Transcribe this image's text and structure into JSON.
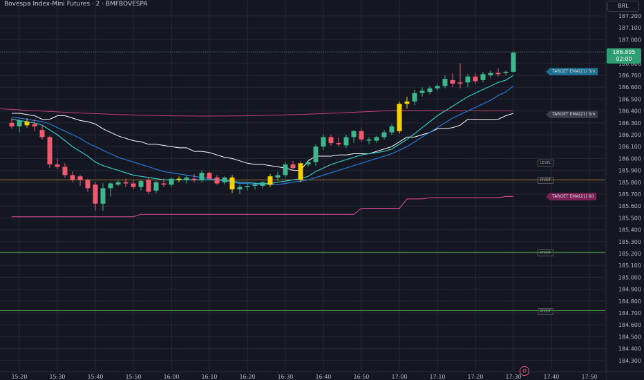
{
  "header": {
    "title": "Bovespa Index-Mini Futures · 2 · BMFBOVESPA",
    "currency": "BRL"
  },
  "last_price": {
    "value": "186.895",
    "countdown": "02:00"
  },
  "colors": {
    "background": "#141722",
    "grid": "#232735",
    "up_candle": "#3fb68b",
    "down_candle": "#f05a6e",
    "highlight_candle": "#f7d000",
    "ema_fast": "#39c6c0",
    "ema_slow": "#2b78d4",
    "channel_upper": "#ffffff",
    "channel_lower": "#e64da0",
    "ema_long": "#c2406f",
    "level_green": "#3e8f3e",
    "level_orange": "#a67a2c"
  },
  "target_labels": [
    {
      "text": "TARGET EMA(21) 5m",
      "price": 186.73,
      "color": "#1b6f8f"
    },
    {
      "text": "TARGET EMA(21) 5m",
      "price": 186.37,
      "color": "#3a3d48"
    },
    {
      "text": "TARGET EMA(21) 60",
      "price": 185.68,
      "color": "#7a2258"
    }
  ],
  "level_tags": [
    {
      "text": "LEVEL",
      "price": 185.97
    },
    {
      "text": "PIVOT",
      "price": 185.82
    },
    {
      "text": "PIVOT",
      "price": 185.21
    },
    {
      "text": "PIVOT",
      "price": 184.72
    }
  ],
  "logo_glyph": "Ø",
  "chart_data": {
    "type": "candlestick",
    "title": "Bovespa Index-Mini Futures · 2 · BMFBOVESPA",
    "y_axis": {
      "ylim": [
        184.25,
        187.3
      ],
      "ticks": [
        "187.200",
        "187.100",
        "187.000",
        "186.900",
        "186.800",
        "186.700",
        "186.600",
        "186.500",
        "186.400",
        "186.300",
        "186.200",
        "186.100",
        "186.000",
        "185.900",
        "185.800",
        "185.700",
        "185.600",
        "185.500",
        "185.400",
        "185.300",
        "185.200",
        "185.100",
        "185.000",
        "184.900",
        "184.800",
        "184.700",
        "184.600",
        "184.500",
        "184.400",
        "184.300"
      ]
    },
    "x_axis": {
      "interval": "2 min",
      "ticks": [
        "15:20",
        "15:30",
        "15:40",
        "15:50",
        "16:00",
        "16:10",
        "16:20",
        "16:30",
        "16:40",
        "16:50",
        "17:00",
        "17:10",
        "17:20",
        "17:30",
        "17:40",
        "17:50"
      ]
    },
    "grid": true,
    "candles": [
      {
        "time": "15:18",
        "o": 186.3,
        "h": 186.34,
        "l": 186.25,
        "c": 186.27,
        "color": "down"
      },
      {
        "time": "15:20",
        "o": 186.27,
        "h": 186.33,
        "l": 186.22,
        "c": 186.32,
        "color": "up"
      },
      {
        "time": "15:22",
        "o": 186.31,
        "h": 186.34,
        "l": 186.26,
        "c": 186.28,
        "color": "highlight"
      },
      {
        "time": "15:24",
        "o": 186.29,
        "h": 186.33,
        "l": 186.23,
        "c": 186.27,
        "color": "down"
      },
      {
        "time": "15:26",
        "o": 186.24,
        "h": 186.28,
        "l": 186.16,
        "c": 186.18,
        "color": "down"
      },
      {
        "time": "15:28",
        "o": 186.18,
        "h": 186.19,
        "l": 185.92,
        "c": 185.95,
        "color": "down"
      },
      {
        "time": "15:30",
        "o": 185.95,
        "h": 186.0,
        "l": 185.91,
        "c": 185.93,
        "color": "down"
      },
      {
        "time": "15:32",
        "o": 185.93,
        "h": 185.96,
        "l": 185.84,
        "c": 185.86,
        "color": "down"
      },
      {
        "time": "15:34",
        "o": 185.86,
        "h": 185.89,
        "l": 185.8,
        "c": 185.82,
        "color": "down"
      },
      {
        "time": "15:36",
        "o": 185.85,
        "h": 185.86,
        "l": 185.77,
        "c": 185.82,
        "color": "down"
      },
      {
        "time": "15:38",
        "o": 185.82,
        "h": 185.83,
        "l": 185.72,
        "c": 185.75,
        "color": "down"
      },
      {
        "time": "15:40",
        "o": 185.78,
        "h": 185.8,
        "l": 185.56,
        "c": 185.62,
        "color": "down"
      },
      {
        "time": "15:42",
        "o": 185.62,
        "h": 185.79,
        "l": 185.56,
        "c": 185.75,
        "color": "up"
      },
      {
        "time": "15:44",
        "o": 185.75,
        "h": 185.8,
        "l": 185.68,
        "c": 185.79,
        "color": "up"
      },
      {
        "time": "15:46",
        "o": 185.78,
        "h": 185.82,
        "l": 185.77,
        "c": 185.8,
        "color": "up"
      },
      {
        "time": "15:48",
        "o": 185.8,
        "h": 185.83,
        "l": 185.76,
        "c": 185.79,
        "color": "down"
      },
      {
        "time": "15:50",
        "o": 185.79,
        "h": 185.82,
        "l": 185.74,
        "c": 185.76,
        "color": "down"
      },
      {
        "time": "15:52",
        "o": 185.76,
        "h": 185.82,
        "l": 185.73,
        "c": 185.81,
        "color": "up"
      },
      {
        "time": "15:54",
        "o": 185.82,
        "h": 185.84,
        "l": 185.7,
        "c": 185.72,
        "color": "down"
      },
      {
        "time": "15:56",
        "o": 185.73,
        "h": 185.81,
        "l": 185.71,
        "c": 185.8,
        "color": "up"
      },
      {
        "time": "15:58",
        "o": 185.79,
        "h": 185.83,
        "l": 185.76,
        "c": 185.78,
        "color": "down"
      },
      {
        "time": "16:00",
        "o": 185.78,
        "h": 185.84,
        "l": 185.76,
        "c": 185.83,
        "color": "up"
      },
      {
        "time": "16:02",
        "o": 185.83,
        "h": 185.85,
        "l": 185.8,
        "c": 185.82,
        "color": "highlight"
      },
      {
        "time": "16:04",
        "o": 185.82,
        "h": 185.86,
        "l": 185.79,
        "c": 185.84,
        "color": "up"
      },
      {
        "time": "16:06",
        "o": 185.83,
        "h": 185.87,
        "l": 185.8,
        "c": 185.82,
        "color": "down"
      },
      {
        "time": "16:08",
        "o": 185.82,
        "h": 185.9,
        "l": 185.8,
        "c": 185.88,
        "color": "up"
      },
      {
        "time": "16:10",
        "o": 185.88,
        "h": 185.89,
        "l": 185.82,
        "c": 185.83,
        "color": "down"
      },
      {
        "time": "16:12",
        "o": 185.84,
        "h": 185.86,
        "l": 185.78,
        "c": 185.79,
        "color": "down"
      },
      {
        "time": "16:14",
        "o": 185.8,
        "h": 185.85,
        "l": 185.78,
        "c": 185.84,
        "color": "up"
      },
      {
        "time": "16:16",
        "o": 185.84,
        "h": 185.86,
        "l": 185.71,
        "c": 185.74,
        "color": "highlight"
      },
      {
        "time": "16:18",
        "o": 185.74,
        "h": 185.78,
        "l": 185.7,
        "c": 185.76,
        "color": "up"
      },
      {
        "time": "16:20",
        "o": 185.76,
        "h": 185.79,
        "l": 185.73,
        "c": 185.77,
        "color": "up"
      },
      {
        "time": "16:22",
        "o": 185.77,
        "h": 185.8,
        "l": 185.74,
        "c": 185.78,
        "color": "up"
      },
      {
        "time": "16:24",
        "o": 185.77,
        "h": 185.81,
        "l": 185.75,
        "c": 185.8,
        "color": "up"
      },
      {
        "time": "16:26",
        "o": 185.78,
        "h": 185.87,
        "l": 185.76,
        "c": 185.85,
        "color": "highlight"
      },
      {
        "time": "16:28",
        "o": 185.84,
        "h": 185.89,
        "l": 185.81,
        "c": 185.86,
        "color": "up"
      },
      {
        "time": "16:30",
        "o": 185.86,
        "h": 185.97,
        "l": 185.84,
        "c": 185.95,
        "color": "up"
      },
      {
        "time": "16:32",
        "o": 185.95,
        "h": 185.98,
        "l": 185.9,
        "c": 185.92,
        "color": "down"
      },
      {
        "time": "16:34",
        "o": 185.82,
        "h": 185.97,
        "l": 185.8,
        "c": 185.96,
        "color": "highlight"
      },
      {
        "time": "16:36",
        "o": 185.95,
        "h": 185.99,
        "l": 185.93,
        "c": 185.97,
        "color": "up"
      },
      {
        "time": "16:38",
        "o": 185.97,
        "h": 186.12,
        "l": 185.94,
        "c": 186.1,
        "color": "up"
      },
      {
        "time": "16:40",
        "o": 186.1,
        "h": 186.2,
        "l": 186.07,
        "c": 186.18,
        "color": "up"
      },
      {
        "time": "16:42",
        "o": 186.18,
        "h": 186.2,
        "l": 186.11,
        "c": 186.13,
        "color": "down"
      },
      {
        "time": "16:44",
        "o": 186.13,
        "h": 186.18,
        "l": 186.1,
        "c": 186.12,
        "color": "down"
      },
      {
        "time": "16:46",
        "o": 186.11,
        "h": 186.2,
        "l": 186.09,
        "c": 186.18,
        "color": "up"
      },
      {
        "time": "16:48",
        "o": 186.18,
        "h": 186.24,
        "l": 186.13,
        "c": 186.23,
        "color": "up"
      },
      {
        "time": "16:50",
        "o": 186.23,
        "h": 186.25,
        "l": 186.14,
        "c": 186.16,
        "color": "down"
      },
      {
        "time": "16:52",
        "o": 186.16,
        "h": 186.18,
        "l": 186.12,
        "c": 186.15,
        "color": "up"
      },
      {
        "time": "16:54",
        "o": 186.15,
        "h": 186.19,
        "l": 186.13,
        "c": 186.18,
        "color": "up"
      },
      {
        "time": "16:56",
        "o": 186.18,
        "h": 186.24,
        "l": 186.16,
        "c": 186.22,
        "color": "up"
      },
      {
        "time": "16:58",
        "o": 186.22,
        "h": 186.29,
        "l": 186.2,
        "c": 186.27,
        "color": "up"
      },
      {
        "time": "17:00",
        "o": 186.23,
        "h": 186.48,
        "l": 186.21,
        "c": 186.46,
        "color": "highlight"
      },
      {
        "time": "17:02",
        "o": 186.46,
        "h": 186.52,
        "l": 186.42,
        "c": 186.48,
        "color": "highlight"
      },
      {
        "time": "17:04",
        "o": 186.48,
        "h": 186.58,
        "l": 186.45,
        "c": 186.55,
        "color": "up"
      },
      {
        "time": "17:06",
        "o": 186.55,
        "h": 186.6,
        "l": 186.52,
        "c": 186.57,
        "color": "up"
      },
      {
        "time": "17:08",
        "o": 186.56,
        "h": 186.61,
        "l": 186.54,
        "c": 186.59,
        "color": "up"
      },
      {
        "time": "17:10",
        "o": 186.59,
        "h": 186.63,
        "l": 186.57,
        "c": 186.61,
        "color": "up"
      },
      {
        "time": "17:12",
        "o": 186.61,
        "h": 186.7,
        "l": 186.59,
        "c": 186.67,
        "color": "up"
      },
      {
        "time": "17:14",
        "o": 186.66,
        "h": 186.72,
        "l": 186.6,
        "c": 186.63,
        "color": "down"
      },
      {
        "time": "17:16",
        "o": 186.63,
        "h": 186.8,
        "l": 186.59,
        "c": 186.64,
        "color": "down"
      },
      {
        "time": "17:18",
        "o": 186.64,
        "h": 186.71,
        "l": 186.6,
        "c": 186.69,
        "color": "up"
      },
      {
        "time": "17:20",
        "o": 186.69,
        "h": 186.72,
        "l": 186.63,
        "c": 186.65,
        "color": "down"
      },
      {
        "time": "17:22",
        "o": 186.66,
        "h": 186.73,
        "l": 186.64,
        "c": 186.71,
        "color": "up"
      },
      {
        "time": "17:24",
        "o": 186.7,
        "h": 186.74,
        "l": 186.68,
        "c": 186.72,
        "color": "up"
      },
      {
        "time": "17:26",
        "o": 186.72,
        "h": 186.76,
        "l": 186.69,
        "c": 186.71,
        "color": "down"
      },
      {
        "time": "17:28",
        "o": 186.72,
        "h": 186.74,
        "l": 186.7,
        "c": 186.73,
        "color": "up"
      },
      {
        "time": "17:30",
        "o": 186.73,
        "h": 186.9,
        "l": 186.72,
        "c": 186.89,
        "color": "up"
      }
    ],
    "indicators": {
      "ema_fast": [
        186.33,
        186.32,
        186.31,
        186.3,
        186.28,
        186.24,
        186.2,
        186.15,
        186.1,
        186.06,
        186.02,
        185.97,
        185.94,
        185.92,
        185.9,
        185.88,
        185.86,
        185.85,
        185.84,
        185.83,
        185.82,
        185.82,
        185.82,
        185.82,
        185.82,
        185.82,
        185.82,
        185.82,
        185.82,
        185.81,
        185.8,
        185.8,
        185.79,
        185.79,
        185.79,
        185.8,
        185.81,
        185.82,
        185.83,
        185.85,
        185.89,
        185.92,
        185.95,
        185.97,
        185.99,
        186.01,
        186.03,
        186.04,
        186.05,
        186.06,
        186.08,
        186.12,
        186.16,
        186.21,
        186.26,
        186.31,
        186.36,
        186.4,
        186.44,
        186.48,
        186.52,
        186.55,
        186.58,
        186.61,
        186.64,
        186.66,
        186.7
      ],
      "ema_slow": [
        186.35,
        186.34,
        186.33,
        186.32,
        186.31,
        186.29,
        186.26,
        186.23,
        186.2,
        186.17,
        186.13,
        186.1,
        186.07,
        186.04,
        186.01,
        185.99,
        185.97,
        185.95,
        185.93,
        185.91,
        185.89,
        185.88,
        185.87,
        185.86,
        185.85,
        185.84,
        185.83,
        185.82,
        185.81,
        185.8,
        185.79,
        185.79,
        185.78,
        185.78,
        185.78,
        185.78,
        185.79,
        185.8,
        185.81,
        185.82,
        185.84,
        185.86,
        185.88,
        185.9,
        185.92,
        185.94,
        185.96,
        185.98,
        186.0,
        186.02,
        186.04,
        186.07,
        186.1,
        186.14,
        186.18,
        186.22,
        186.26,
        186.3,
        186.34,
        186.37,
        186.4,
        186.43,
        186.46,
        186.49,
        186.53,
        186.56,
        186.61
      ],
      "channel_upper": [
        186.38,
        186.38,
        186.37,
        186.36,
        186.33,
        186.33,
        186.36,
        186.36,
        186.34,
        186.32,
        186.31,
        186.29,
        186.25,
        186.22,
        186.19,
        186.17,
        186.15,
        186.14,
        186.12,
        186.12,
        186.11,
        186.1,
        186.09,
        186.09,
        186.06,
        186.06,
        186.05,
        186.03,
        186.01,
        186.0,
        185.98,
        185.96,
        185.95,
        185.95,
        185.94,
        185.93,
        185.92,
        185.9,
        185.9,
        185.98,
        186.02,
        186.02,
        186.02,
        186.03,
        186.03,
        186.04,
        186.04,
        186.04,
        186.06,
        186.08,
        186.1,
        186.14,
        186.18,
        186.18,
        186.2,
        186.22,
        186.25,
        186.25,
        186.26,
        186.28,
        186.33,
        186.33,
        186.33,
        186.33,
        186.33,
        186.36,
        186.38
      ],
      "channel_lower": [
        185.51,
        185.51,
        185.51,
        185.51,
        185.51,
        185.51,
        185.51,
        185.51,
        185.51,
        185.51,
        185.51,
        185.51,
        185.51,
        185.51,
        185.51,
        185.51,
        185.51,
        185.53,
        185.53,
        185.53,
        185.53,
        185.53,
        185.53,
        185.53,
        185.53,
        185.53,
        185.53,
        185.53,
        185.53,
        185.53,
        185.53,
        185.53,
        185.53,
        185.53,
        185.53,
        185.53,
        185.53,
        185.53,
        185.53,
        185.53,
        185.53,
        185.53,
        185.53,
        185.53,
        185.53,
        185.53,
        185.58,
        185.58,
        185.58,
        185.58,
        185.58,
        185.58,
        185.66,
        185.66,
        185.66,
        185.67,
        185.67,
        185.67,
        185.67,
        185.67,
        185.67,
        185.67,
        185.67,
        185.67,
        185.67,
        185.68,
        185.68
      ],
      "ema_long_y_start": 186.42,
      "ema_long_y_end": 186.4
    },
    "horizontal_levels": [
      {
        "price": 185.82,
        "color": "orange"
      },
      {
        "price": 185.21,
        "color": "green"
      },
      {
        "price": 184.72,
        "color": "green"
      }
    ],
    "last_price_line": 186.895
  }
}
